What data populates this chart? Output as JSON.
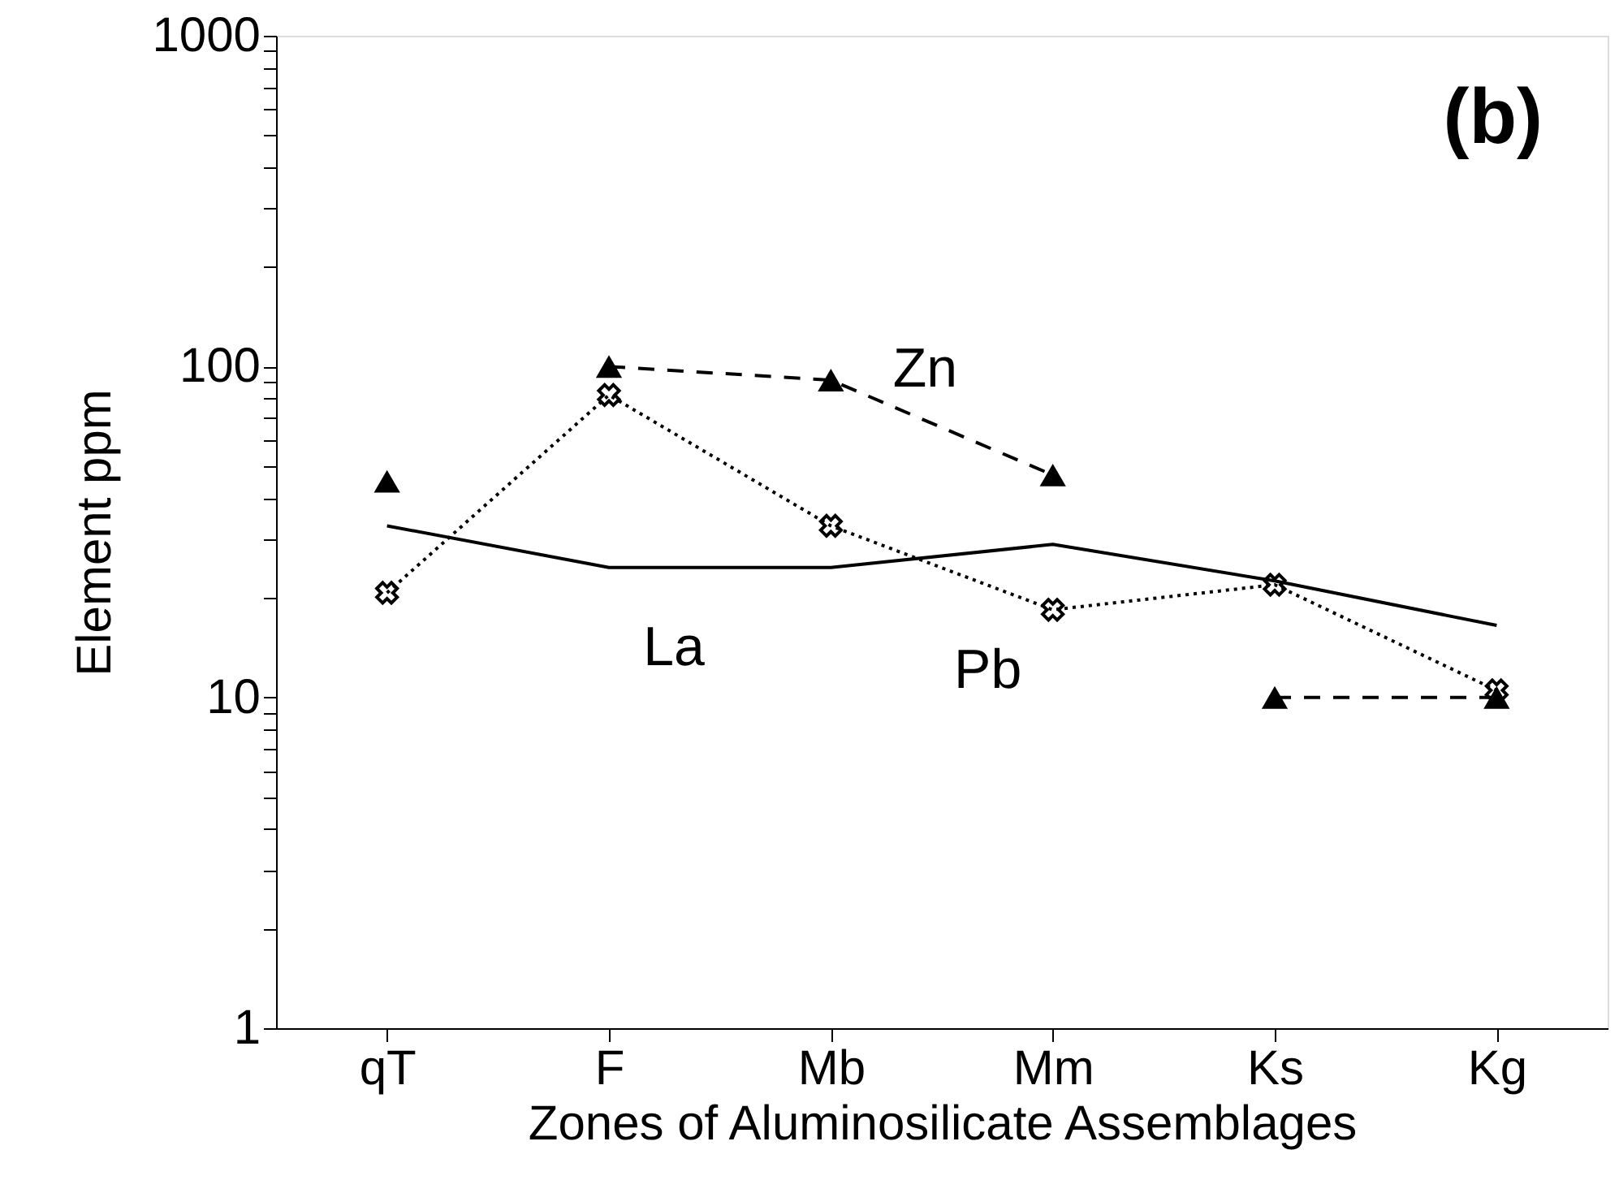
{
  "chart_data": {
    "type": "line",
    "xlabel": "Zones of Aluminosilicate Assemblages",
    "ylabel": "Element ppm",
    "categories": [
      "qT",
      "F",
      "Mb",
      "Mm",
      "Ks",
      "Kg"
    ],
    "series": [
      {
        "name": "La",
        "color": "#000000",
        "values": [
          33,
          24.7,
          24.7,
          29,
          22.5,
          16.5
        ],
        "marker": "none",
        "line_style": "solid"
      },
      {
        "name": "Pb",
        "color": "#000000",
        "values": [
          20.7,
          82,
          33,
          18.4,
          21.9,
          10.5
        ],
        "marker": "cross",
        "line_style": "dotted"
      },
      {
        "name": "Zn",
        "color": "#000000",
        "values": [
          null,
          100,
          91,
          47,
          null,
          null
        ],
        "marker": "triangle",
        "line_style": "dashed"
      },
      {
        "color": "#000000",
        "values": [
          45,
          null,
          null,
          null,
          10,
          10
        ],
        "marker": "triangle",
        "line_style": "dashed"
      }
    ],
    "log": true,
    "ylim": [
      1,
      1000
    ],
    "yticks": [
      1,
      {
        "value": 2,
        "label": null
      },
      {
        "value": 3,
        "label": null
      },
      {
        "value": 4,
        "label": null
      },
      {
        "value": 5,
        "label": null
      },
      {
        "value": 6,
        "label": null
      },
      {
        "value": 7,
        "label": null
      },
      {
        "value": 8,
        "label": null
      },
      {
        "value": 9,
        "label": null
      },
      10,
      {
        "value": 20,
        "label": null
      },
      {
        "value": 30,
        "label": null
      },
      {
        "value": 40,
        "label": null
      },
      {
        "value": 50,
        "label": null
      },
      {
        "value": 60,
        "label": null
      },
      {
        "value": 70,
        "label": null
      },
      {
        "value": 80,
        "label": null
      },
      {
        "value": 90,
        "label": null
      },
      100,
      {
        "value": 200,
        "label": null
      },
      {
        "value": 300,
        "label": null
      },
      {
        "value": 400,
        "label": null
      },
      {
        "value": 500,
        "label": null
      },
      {
        "value": 600,
        "label": null
      },
      {
        "value": 700,
        "label": null
      },
      {
        "value": 800,
        "label": null
      },
      {
        "value": 900,
        "label": null
      },
      1000
    ],
    "annotations": [
      "(b)"
    ],
    "grid": false
  }
}
